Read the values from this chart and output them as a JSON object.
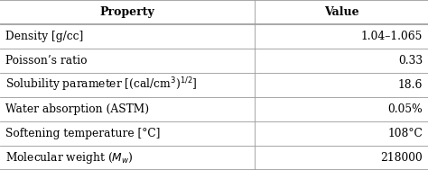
{
  "col_headers": [
    "Property",
    "Value"
  ],
  "rows": [
    [
      "Density [g/cc]",
      "1.04–1.065"
    ],
    [
      "Poisson’s ratio",
      "0.33"
    ],
    [
      "Solubility parameter [(cal/cm$^3$)$^{1/2}$]",
      "18.6"
    ],
    [
      "Water absorption (ASTM)",
      "0.05%"
    ],
    [
      "Softening temperature [°C]",
      "108°C"
    ],
    [
      "Molecular weight ($\\mathit{M}_w$)",
      "218000"
    ]
  ],
  "col_split": 0.595,
  "header_bg": "#ffffff",
  "line_color": "#999999",
  "text_color": "#000000",
  "header_fontsize": 9.0,
  "body_fontsize": 8.8,
  "fig_width": 4.74,
  "fig_height": 1.89,
  "dpi": 100
}
